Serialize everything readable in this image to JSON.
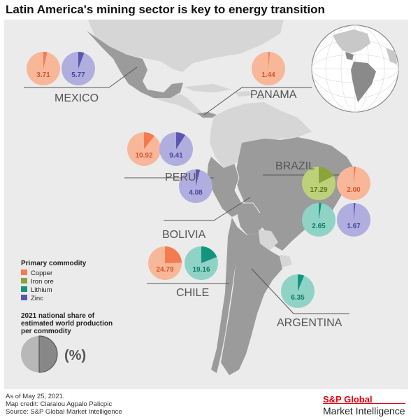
{
  "title": "Latin America's mining sector is key to energy transition",
  "colors": {
    "copper": "#f47b50",
    "copper_fill": "#f9b79a",
    "iron_ore": "#8aa33c",
    "iron_ore_fill": "#bdd17a",
    "lithium": "#14947c",
    "lithium_fill": "#8fd3c6",
    "zinc": "#5b56b0",
    "zinc_fill": "#b0addf",
    "land": "#9b9b9b",
    "other_land": "#d6d6d6",
    "ocean": "#ebebeb"
  },
  "countries": [
    {
      "name": "MEXICO",
      "pies": [
        {
          "commodity": "copper",
          "value": 3.71
        },
        {
          "commodity": "zinc",
          "value": 5.77
        }
      ]
    },
    {
      "name": "PANAMA",
      "pies": [
        {
          "commodity": "copper",
          "value": 1.44
        }
      ]
    },
    {
      "name": "PERU",
      "pies": [
        {
          "commodity": "copper",
          "value": 10.92
        },
        {
          "commodity": "zinc",
          "value": 9.41
        }
      ]
    },
    {
      "name": "BOLIVIA",
      "pies": [
        {
          "commodity": "zinc",
          "value": 4.08
        }
      ]
    },
    {
      "name": "BRAZIL",
      "pies": [
        {
          "commodity": "iron_ore",
          "value": 17.29
        },
        {
          "commodity": "copper",
          "value": 2.0
        },
        {
          "commodity": "lithium",
          "value": 2.65
        },
        {
          "commodity": "zinc",
          "value": 1.67
        }
      ]
    },
    {
      "name": "CHILE",
      "pies": [
        {
          "commodity": "copper",
          "value": 24.79
        },
        {
          "commodity": "lithium",
          "value": 19.16
        }
      ]
    },
    {
      "name": "ARGENTINA",
      "pies": [
        {
          "commodity": "lithium",
          "value": 6.35
        }
      ]
    }
  ],
  "pie_labels": {
    "mexico_copper": "3.71",
    "mexico_zinc": "5.77",
    "panama_copper": "1.44",
    "peru_copper": "10.92",
    "peru_zinc": "9.41",
    "bolivia_zinc": "4.08",
    "brazil_iron": "17.29",
    "brazil_copper": "2.00",
    "brazil_lithium": "2.65",
    "brazil_zinc": "1.67",
    "chile_copper": "24.79",
    "chile_lithium": "19.16",
    "argentina_lithium": "6.35"
  },
  "country_labels": {
    "mexico": "MEXICO",
    "panama": "PANAMA",
    "peru": "PERU",
    "brazil": "BRAZIL",
    "bolivia": "BOLIVIA",
    "chile": "CHILE",
    "argentina": "ARGENTINA"
  },
  "legend": {
    "title": "Primary commodity",
    "items": [
      "Copper",
      "Iron ore",
      "Lithium",
      "Zinc"
    ],
    "note_line1": "2021 national share of",
    "note_line2": "estimated world production",
    "note_line3": "per commodity",
    "pct": "(%)"
  },
  "footer": {
    "line1": "As of May 25, 2021.",
    "line2": "Map credit: Ciaralou Agpalo Palicpic",
    "line3": "Source: S&P Global Market Intelligence"
  },
  "brand": {
    "line1": "S&P Global",
    "line2": "Market Intelligence"
  }
}
